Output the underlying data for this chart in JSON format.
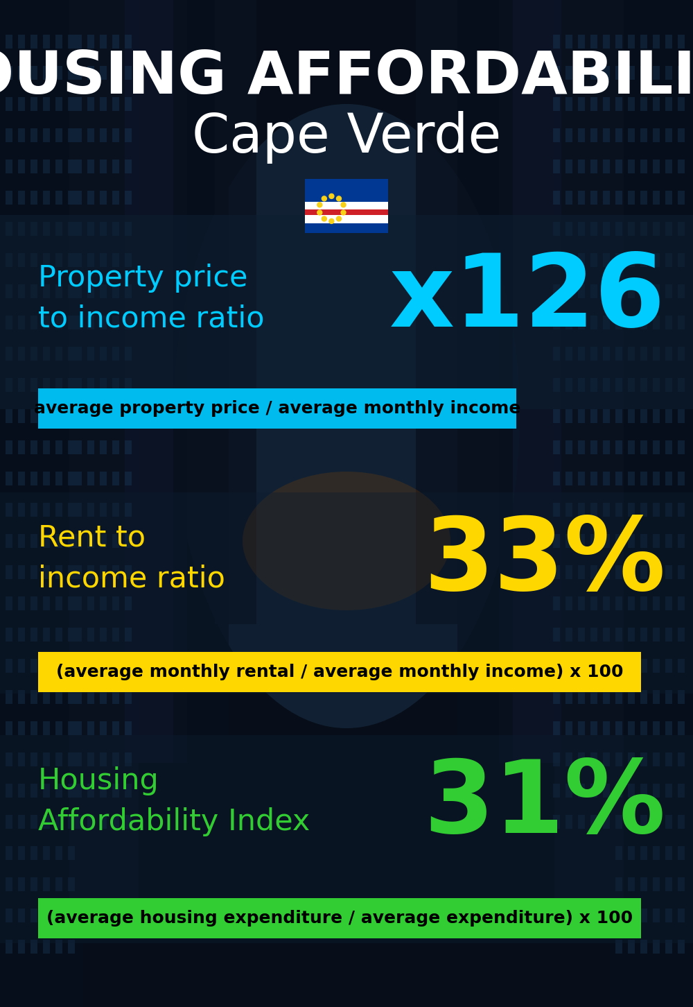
{
  "title_line1": "HOUSING AFFORDABILITY",
  "title_line2": "Cape Verde",
  "section1_label": "Property price\nto income ratio",
  "section1_value": "x126",
  "section1_label_color": "#00CCFF",
  "section1_value_color": "#00CCFF",
  "section1_formula": "average property price / average monthly income",
  "section1_formula_bg": "#00BBEE",
  "section2_label": "Rent to\nincome ratio",
  "section2_value": "33%",
  "section2_label_color": "#FFD700",
  "section2_value_color": "#FFD700",
  "section2_formula": "(average monthly rental / average monthly income) x 100",
  "section2_formula_bg": "#FFD700",
  "section3_label": "Housing\nAffordability Index",
  "section3_value": "31%",
  "section3_label_color": "#32CD32",
  "section3_value_color": "#32CD32",
  "section3_formula": "(average housing expenditure / average expenditure) x 100",
  "section3_formula_bg": "#32CD32",
  "bg_dark": "#070e1a",
  "bg_mid": "#0d1e30",
  "title_color": "#FFFFFF",
  "formula_text_color": "#000000",
  "panel_color": "#0d1e30",
  "building_color": "#0a1525",
  "sky_color": "#1a3a5a"
}
